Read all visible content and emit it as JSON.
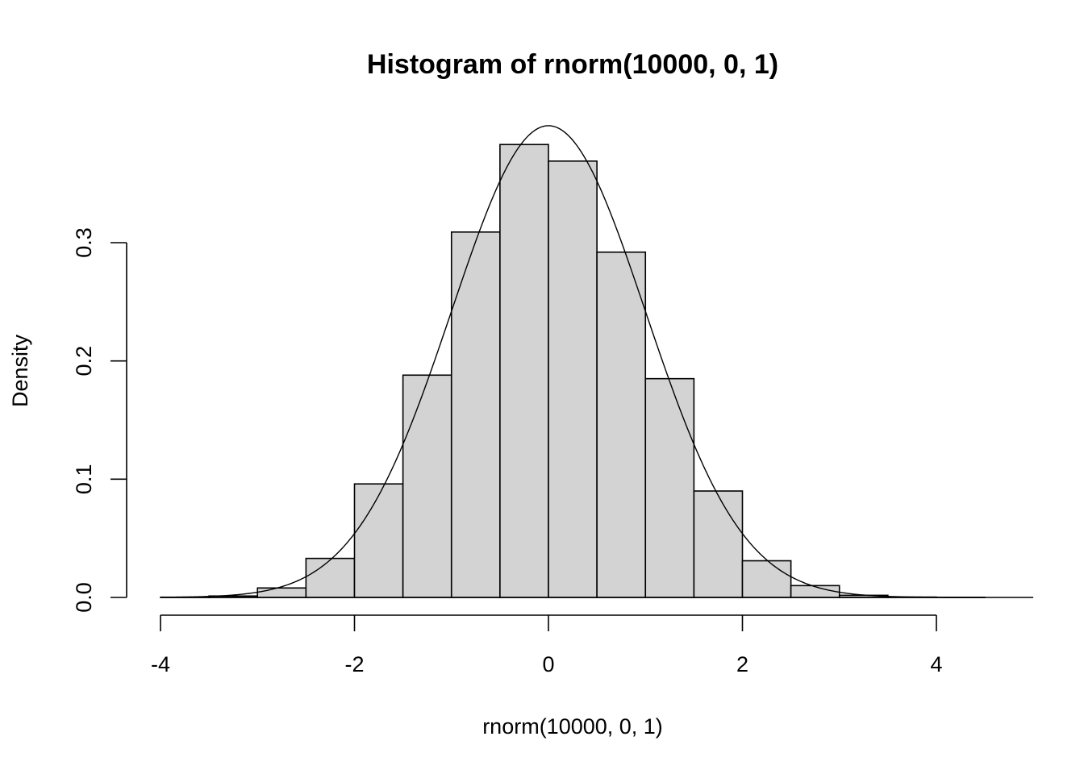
{
  "chart_data": {
    "type": "bar",
    "subtype": "histogram",
    "title": "Histogram of rnorm(10000, 0, 1)",
    "xlabel": "rnorm(10000, 0, 1)",
    "ylabel": "Density",
    "xlim": [
      -4.5,
      4.5
    ],
    "ylim": [
      0,
      0.4
    ],
    "x_ticks": [
      -4,
      -2,
      0,
      2,
      4
    ],
    "x_tick_labels": [
      "-4",
      "-2",
      "0",
      "2",
      "4"
    ],
    "y_ticks": [
      0,
      0.1,
      0.2,
      0.3
    ],
    "y_tick_labels": [
      "0.0",
      "0.1",
      "0.2",
      "0.3"
    ],
    "bins": [
      {
        "x0": -4.0,
        "x1": -3.5,
        "density": 0.0002
      },
      {
        "x0": -3.5,
        "x1": -3.0,
        "density": 0.0012
      },
      {
        "x0": -3.0,
        "x1": -2.5,
        "density": 0.008
      },
      {
        "x0": -2.5,
        "x1": -2.0,
        "density": 0.033
      },
      {
        "x0": -2.0,
        "x1": -1.5,
        "density": 0.096
      },
      {
        "x0": -1.5,
        "x1": -1.0,
        "density": 0.188
      },
      {
        "x0": -1.0,
        "x1": -0.5,
        "density": 0.309
      },
      {
        "x0": -0.5,
        "x1": 0.0,
        "density": 0.383
      },
      {
        "x0": 0.0,
        "x1": 0.5,
        "density": 0.369
      },
      {
        "x0": 0.5,
        "x1": 1.0,
        "density": 0.292
      },
      {
        "x0": 1.0,
        "x1": 1.5,
        "density": 0.185
      },
      {
        "x0": 1.5,
        "x1": 2.0,
        "density": 0.09
      },
      {
        "x0": 2.0,
        "x1": 2.5,
        "density": 0.031
      },
      {
        "x0": 2.5,
        "x1": 3.0,
        "density": 0.01
      },
      {
        "x0": 3.0,
        "x1": 3.5,
        "density": 0.0018
      },
      {
        "x0": 3.5,
        "x1": 4.0,
        "density": 0.0003
      },
      {
        "x0": 4.0,
        "x1": 4.5,
        "density": 0.0001
      }
    ],
    "overlay_curve": {
      "type": "normal-density",
      "mean": 0,
      "sd": 1,
      "x_range": [
        -4.0,
        4.5
      ]
    },
    "grid": false,
    "colors": {
      "bar_fill": "#d3d3d3",
      "bar_stroke": "#000000",
      "curve": "#000000",
      "background": "#ffffff"
    }
  }
}
